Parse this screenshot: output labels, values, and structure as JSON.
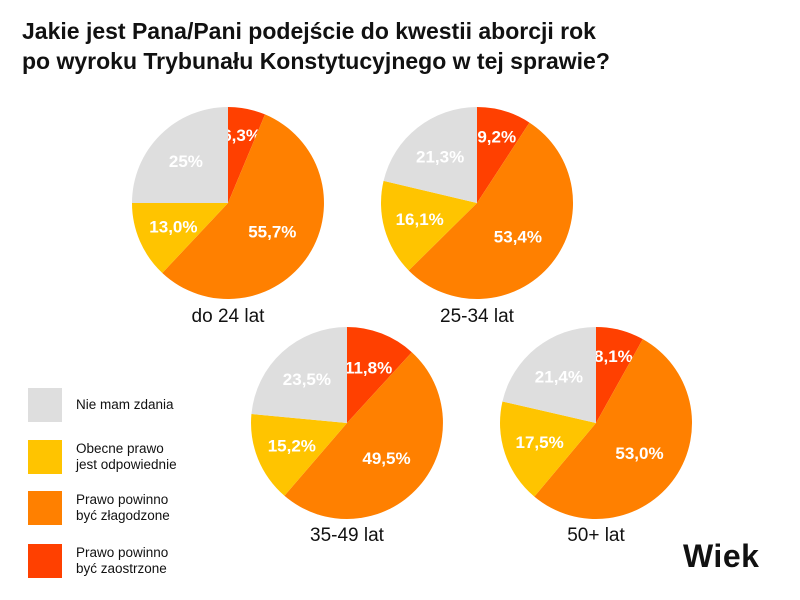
{
  "title": {
    "line1": "Jakie jest Pana/Pani podejście do kwestii aborcji rok",
    "line2": "po wyroku Trybunału Konstytucyjnego w tej sprawie?"
  },
  "brand": "Wiek",
  "chart_data": {
    "type": "pie",
    "categories": [
      "Nie mam zdania",
      "Obecne prawo\njest odpowiednie",
      "Prawo powinno\nbyć złagodzone",
      "Prawo powinno\nbyć zaostrzone"
    ],
    "colors": [
      "#dedede",
      "#ffc400",
      "#ff8000",
      "#ff4000"
    ],
    "legend_position": "left",
    "pies": [
      {
        "label": "do 24 lat",
        "values": [
          25.0,
          13.0,
          55.7,
          6.3
        ],
        "value_labels": [
          "25%",
          "13,0%",
          "55,7%",
          "6,3%"
        ]
      },
      {
        "label": "25-34 lat",
        "values": [
          21.3,
          16.1,
          53.4,
          9.2
        ],
        "value_labels": [
          "21,3%",
          "16,1%",
          "53,4%",
          "9,2%"
        ]
      },
      {
        "label": "35-49 lat",
        "values": [
          23.5,
          15.2,
          49.5,
          11.8
        ],
        "value_labels": [
          "23,5%",
          "15,2%",
          "49,5%",
          "11,8%"
        ]
      },
      {
        "label": "50+ lat",
        "values": [
          21.4,
          17.5,
          53.0,
          8.1
        ],
        "value_labels": [
          "21,4%",
          "17,5%",
          "53,0%",
          "8,1%"
        ]
      }
    ]
  }
}
